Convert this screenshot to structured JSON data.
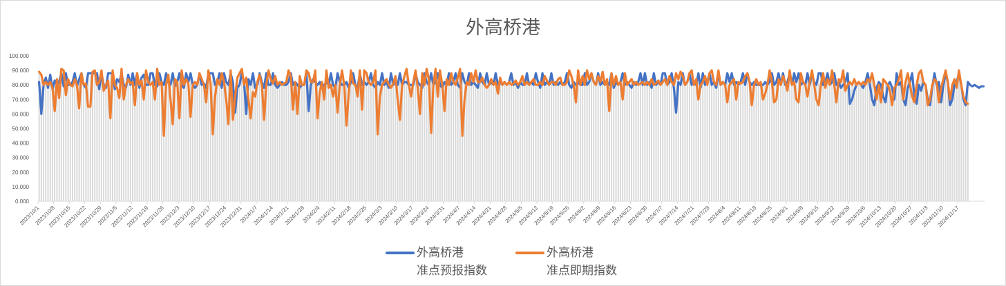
{
  "chart_data": {
    "type": "line",
    "title": "外高桥港",
    "xlabel": "",
    "ylabel": "",
    "ylim": [
      0,
      100
    ],
    "y_ticks": [
      "0.000",
      "10.000",
      "20.000",
      "30.000",
      "40.000",
      "50.000",
      "60.000",
      "70.000",
      "80.000",
      "90.000",
      "100.000"
    ],
    "x_start": "2023/10/1",
    "x_end": "2024/11/21",
    "x_tick_labels": [
      "2023/10/1",
      "2023/10/8",
      "2023/10/15",
      "2023/10/22",
      "2023/10/29",
      "2023/11/5",
      "2023/11/12",
      "2023/11/19",
      "2023/11/26",
      "2023/12/3",
      "2023/12/10",
      "2023/12/17",
      "2023/12/24",
      "2023/12/31",
      "2024/1/7",
      "2024/1/14",
      "2024/1/21",
      "2024/1/28",
      "2024/2/4",
      "2024/2/11",
      "2024/2/18",
      "2024/2/25",
      "2024/3/3",
      "2024/3/10",
      "2024/3/17",
      "2024/3/24",
      "2024/3/31",
      "2024/4/7",
      "2024/4/14",
      "2024/4/21",
      "2024/4/28",
      "2024/5/5",
      "2024/5/12",
      "2024/5/19",
      "2024/5/26",
      "2024/6/2",
      "2024/6/9",
      "2024/6/16",
      "2024/6/23",
      "2024/6/30",
      "2024/7/7",
      "2024/7/14",
      "2024/7/21",
      "2024/7/28",
      "2024/8/4",
      "2024/8/11",
      "2024/8/18",
      "2024/8/25",
      "2024/9/1",
      "2024/9/8",
      "2024/9/15",
      "2024/9/22",
      "2024/9/29",
      "2024/10/6",
      "2024/10/13",
      "2024/10/20",
      "2024/10/27",
      "2024/11/3",
      "2024/11/10",
      "2024/11/17"
    ],
    "grid": false,
    "legend_position": "bottom",
    "background_columns_color": "#d9d9d9",
    "series": [
      {
        "name": "外高桥港\n准点预报指数",
        "name_line1": "外高桥港",
        "name_line2": "准点预报指数",
        "color": "#4472c4",
        "values": [
          82,
          60,
          80,
          85,
          78,
          87,
          77,
          83,
          80,
          82,
          88,
          79,
          88,
          80,
          80,
          82,
          88,
          79,
          84,
          88,
          80,
          78,
          88,
          88,
          88,
          88,
          88,
          77,
          88,
          80,
          78,
          88,
          88,
          88,
          77,
          84,
          82,
          88,
          80,
          78,
          87,
          80,
          88,
          80,
          88,
          78,
          85,
          87,
          80,
          80,
          88,
          88,
          80,
          79,
          88,
          82,
          80,
          88,
          82,
          80,
          88,
          79,
          82,
          88,
          80,
          78,
          88,
          82,
          88,
          80,
          78,
          80,
          88,
          80,
          81,
          78,
          88,
          88,
          88,
          80,
          82,
          88,
          78,
          88,
          82,
          80,
          88,
          82,
          61,
          78,
          80,
          88,
          82,
          60,
          84,
          80,
          88,
          78,
          80,
          88,
          82,
          78,
          88,
          80,
          80,
          88,
          80,
          78,
          80,
          82,
          80,
          80,
          82,
          88,
          80,
          82,
          80,
          78,
          80,
          80,
          88,
          62,
          80,
          84,
          82,
          80,
          82,
          78,
          80,
          82,
          80,
          88,
          80,
          78,
          88,
          82,
          80,
          80,
          82,
          78,
          82,
          88,
          80,
          78,
          88,
          80,
          82,
          80,
          82,
          88,
          80,
          78,
          82,
          80,
          88,
          80,
          82,
          78,
          88,
          80,
          82,
          80,
          88,
          80,
          82,
          82,
          80,
          80,
          80,
          88,
          82,
          80,
          78,
          88,
          82,
          80,
          88,
          80,
          82,
          88,
          80,
          78,
          82,
          80,
          88,
          80,
          82,
          88,
          80,
          78,
          88,
          82,
          80,
          88,
          80,
          82,
          80,
          78,
          88,
          82,
          80,
          88,
          80,
          82,
          80,
          88,
          80,
          82,
          80,
          82,
          80,
          82,
          88,
          80,
          82,
          78,
          82,
          80,
          80,
          88,
          80,
          82,
          80,
          88,
          82,
          78,
          88,
          80,
          82,
          80,
          88,
          80,
          82,
          80,
          82,
          80,
          82,
          88,
          80,
          78,
          82,
          80,
          82,
          80,
          80,
          88,
          80,
          82,
          88,
          82,
          80,
          88,
          80,
          82,
          80,
          82,
          80,
          88,
          78,
          82,
          80,
          82,
          88,
          80,
          82,
          80,
          78,
          82,
          80,
          82,
          88,
          80,
          88,
          80,
          82,
          78,
          88,
          80,
          82,
          80,
          88,
          88,
          80,
          82,
          88,
          78,
          61,
          82,
          80,
          88,
          80,
          82,
          88,
          80,
          82,
          80,
          88,
          78,
          88,
          80,
          82,
          88,
          80,
          82,
          78,
          88,
          80,
          82,
          80,
          88,
          82,
          88,
          80,
          82,
          80,
          82,
          88,
          80,
          88,
          82,
          80,
          82,
          80,
          80,
          80,
          80,
          82,
          80,
          82,
          88,
          80,
          82,
          88,
          80,
          88,
          80,
          82,
          88,
          80,
          88,
          82,
          88,
          80,
          82,
          80,
          88,
          80,
          88,
          82,
          80,
          88,
          88,
          80,
          82,
          88,
          80,
          82,
          88,
          80,
          82,
          78,
          80,
          82,
          88,
          67,
          70,
          76,
          80,
          82,
          80,
          78,
          82,
          88,
          80,
          70,
          66,
          78,
          82,
          80,
          72,
          68,
          80,
          82,
          78,
          70,
          88,
          80,
          82,
          70,
          66,
          78,
          82,
          88,
          72,
          67,
          80,
          76,
          82,
          80,
          70,
          66,
          78,
          88,
          80,
          82,
          68,
          80,
          88,
          82,
          66,
          70,
          80,
          82,
          88,
          80,
          70,
          66,
          82,
          80,
          79,
          80,
          79,
          78,
          79,
          79
        ]
      },
      {
        "name": "外高桥港\n准点即期指数",
        "name_line1": "外高桥港",
        "name_line2": "准点即期指数",
        "color": "#ed7d31",
        "values": [
          89,
          87,
          80,
          82,
          80,
          82,
          78,
          62,
          84,
          71,
          91,
          90,
          73,
          84,
          80,
          79,
          84,
          80,
          64,
          88,
          80,
          81,
          65,
          65,
          89,
          90,
          80,
          82,
          90,
          76,
          80,
          83,
          57,
          90,
          80,
          78,
          71,
          91,
          70,
          80,
          84,
          81,
          82,
          66,
          88,
          80,
          83,
          70,
          90,
          82,
          80,
          82,
          70,
          91,
          80,
          82,
          45,
          80,
          87,
          70,
          53,
          84,
          82,
          57,
          90,
          80,
          84,
          81,
          58,
          80,
          82,
          80,
          88,
          84,
          80,
          68,
          90,
          81,
          46,
          72,
          84,
          80,
          88,
          82,
          70,
          53,
          90,
          56,
          72,
          85,
          88,
          91,
          80,
          85,
          70,
          57,
          75,
          72,
          82,
          87,
          80,
          56,
          80,
          90,
          84,
          81,
          86,
          80,
          82,
          80,
          81,
          82,
          90,
          86,
          63,
          82,
          60,
          86,
          80,
          80,
          90,
          88,
          82,
          82,
          90,
          57,
          75,
          82,
          70,
          90,
          78,
          80,
          72,
          80,
          61,
          80,
          90,
          80,
          52,
          74,
          90,
          81,
          80,
          72,
          90,
          63,
          90,
          88,
          82,
          80,
          82,
          90,
          46,
          72,
          80,
          82,
          84,
          80,
          78,
          81,
          86,
          70,
          56,
          80,
          86,
          91,
          80,
          72,
          82,
          90,
          78,
          60,
          88,
          80,
          91,
          84,
          47,
          80,
          91,
          72,
          90,
          80,
          62,
          84,
          80,
          88,
          82,
          80,
          85,
          91,
          45,
          70,
          82,
          80,
          88,
          82,
          90,
          82,
          82,
          85,
          80,
          78,
          80,
          84,
          80,
          82,
          74,
          85,
          80,
          82,
          80,
          82,
          80,
          81,
          83,
          80,
          82,
          86,
          80,
          82,
          80,
          82,
          84,
          80,
          80,
          82,
          80,
          86,
          83,
          80,
          82,
          82,
          80,
          84,
          85,
          80,
          80,
          82,
          90,
          86,
          80,
          68,
          90,
          80,
          86,
          80,
          90,
          84,
          88,
          82,
          80,
          86,
          82,
          89,
          80,
          84,
          62,
          88,
          80,
          86,
          80,
          82,
          70,
          88,
          80,
          82,
          84,
          80,
          82,
          80,
          81,
          82,
          80,
          82,
          80,
          84,
          80,
          81,
          83,
          80,
          82,
          84,
          80,
          86,
          82,
          80,
          88,
          84,
          89,
          86,
          80,
          82,
          88,
          90,
          80,
          84,
          70,
          80,
          82,
          86,
          80,
          88,
          90,
          82,
          80,
          90,
          80,
          82,
          80,
          68,
          80,
          82,
          84,
          70,
          82,
          81,
          82,
          86,
          88,
          82,
          66,
          80,
          84,
          80,
          82,
          70,
          74,
          80,
          90,
          82,
          68,
          70,
          84,
          80,
          86,
          82,
          76,
          90,
          80,
          82,
          70,
          68,
          88,
          82,
          80,
          72,
          82,
          90,
          80,
          70,
          66,
          80,
          88,
          78,
          84,
          80,
          90,
          80,
          68,
          84,
          82,
          90,
          76,
          80,
          82,
          80,
          84,
          80,
          82,
          80,
          82,
          80,
          84,
          82,
          88,
          80,
          70,
          80,
          68,
          84,
          82,
          80,
          76,
          66,
          78,
          80,
          84,
          90,
          70,
          82,
          88,
          80,
          72,
          68,
          80,
          88,
          90,
          82,
          80,
          66,
          70,
          80,
          84,
          82,
          68,
          78,
          84,
          90,
          82,
          70,
          80,
          84,
          78,
          90,
          80,
          72,
          68,
          67
        ]
      }
    ]
  }
}
